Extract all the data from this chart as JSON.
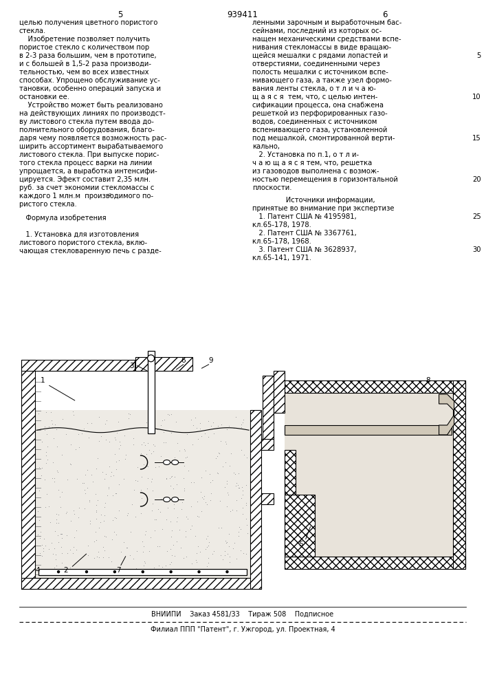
{
  "patent_number": "939411",
  "col_left_number": "5",
  "col_right_number": "6",
  "text_left": [
    "целью получения цветного пористого",
    "стекла.",
    "    Изобретение позволяет получить",
    "пористое стекло с количеством пор",
    "в 2-3 раза большим, чем в прототипе,",
    "и с большей в 1,5-2 раза производи-",
    "тельностью, чем во всех известных",
    "способах. Упрощено обслуживание ус-",
    "тановки, особенно операций запуска и",
    "остановки ее.",
    "    Устройство может быть реализовано",
    "на действующих линиях по производст-",
    "ву листового стекла путем ввода до-",
    "полнительного оборудования, благо-",
    "даря чему появляется возможность рас-",
    "ширить ассортимент вырабатываемого",
    "листового стекла. При выпуске порис-",
    "того стекла процесс варки на линии",
    "упрощается, а выработка интенсифи-",
    "цируется. Эфект составит 2,35 млн.",
    "руб. за счет экономии стекломассы с",
    "каждого 1 млн.м  производимого по-",
    "ристого стекла."
  ],
  "text_left2": [
    "   Формула изобретения",
    "",
    "   1. Установка для изготовления",
    "листового пористого стекла, вклю-",
    "чающая стекловаренную печь с разде-"
  ],
  "text_right": [
    "ленными зарочным и выработочным бас-",
    "сейнами, последний из которых ос-",
    "нащен механическими средствами вспе-",
    "нивания стекломассы в виде вращаю-",
    "щейся мешалки с рядами лопастей и",
    "отверстиями, соединенными через",
    "полость мешалки с источником вспе-",
    "нивающего газа, а также узел формо-",
    "вания ленты стекла, о т л и ч а ю-",
    "щ а я с я  тем, что, с целью интен-",
    "сификации процесса, она снабжена",
    "решеткой из перфорированных газо-",
    "водов, соединенных с источником",
    "вспенивающего газа, установленной",
    "под мешалкой, смонтированной верти-",
    "кально,",
    "   2. Установка по п.1, о т л и-",
    "ч а ю щ а я с я тем, что, решетка",
    "из газоводов выполнена с возмож-",
    "ностью перемещения в горизонтальной",
    "плоскости."
  ],
  "refs_title": "      Источники информации,",
  "refs_sub": "принятые во внимание при экспертизе",
  "refs": [
    "   1. Патент США № 4195981,",
    "кл.65-178, 1978.",
    "   2. Патент США № 3367761,",
    "кл.65-178, 1968.",
    "   3. Патент США № 3628937,",
    "кл.65-141, 1971."
  ],
  "line_nums": [
    [
      5,
      5
    ],
    [
      10,
      10
    ],
    [
      15,
      15
    ],
    [
      20,
      20
    ],
    [
      25,
      25
    ],
    [
      30,
      30
    ]
  ],
  "footer1": "ВНИИПИ    Заказ 4581/33    Тираж 508    Подписное",
  "footer2": "Филиал ППП \"Патент\", г. Ужгород, ул. Проектная, 4"
}
